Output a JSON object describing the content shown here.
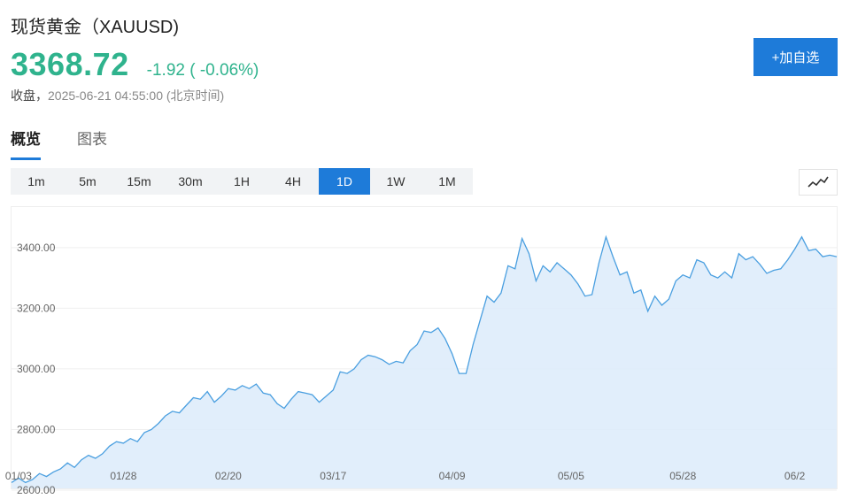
{
  "header": {
    "title": "现货黄金（XAUUSD)",
    "price": "3368.72",
    "change": "-1.92 ( -0.06%)",
    "close_label": "收盘，",
    "close_time": "2025-06-21 04:55:00 (北京时间)"
  },
  "add_button": "+加自选",
  "tabs": [
    {
      "label": "概览",
      "active": true
    },
    {
      "label": "图表",
      "active": false
    }
  ],
  "periods": [
    {
      "label": "1m",
      "active": false
    },
    {
      "label": "5m",
      "active": false
    },
    {
      "label": "15m",
      "active": false
    },
    {
      "label": "30m",
      "active": false
    },
    {
      "label": "1H",
      "active": false
    },
    {
      "label": "4H",
      "active": false
    },
    {
      "label": "1D",
      "active": true
    },
    {
      "label": "1W",
      "active": false
    },
    {
      "label": "1M",
      "active": false
    }
  ],
  "chart_toggle_icon": "line-chart-icon",
  "colors": {
    "accent": "#1e7bd9",
    "up_down": "#2fb38d",
    "line": "#4a9fe0",
    "fill": "#dcebfa"
  },
  "chart_data": {
    "type": "area",
    "title": "",
    "xlabel": "",
    "ylabel": "",
    "ylim": [
      2600,
      3490
    ],
    "yticks": [
      "2600.00",
      "2800.00",
      "3000.00",
      "3200.00",
      "3400.00"
    ],
    "xticks": [
      {
        "label": "01/03",
        "index": 1
      },
      {
        "label": "01/28",
        "index": 16
      },
      {
        "label": "02/20",
        "index": 31
      },
      {
        "label": "03/17",
        "index": 46
      },
      {
        "label": "04/09",
        "index": 63
      },
      {
        "label": "05/05",
        "index": 80
      },
      {
        "label": "05/28",
        "index": 96
      },
      {
        "label": "06/2",
        "index": 112
      }
    ],
    "series": [
      {
        "values": [
          2625,
          2640,
          2625,
          2635,
          2655,
          2645,
          2660,
          2670,
          2690,
          2675,
          2700,
          2715,
          2705,
          2720,
          2745,
          2760,
          2755,
          2770,
          2760,
          2790,
          2800,
          2820,
          2845,
          2860,
          2855,
          2880,
          2905,
          2900,
          2925,
          2890,
          2910,
          2935,
          2930,
          2945,
          2935,
          2950,
          2920,
          2915,
          2885,
          2870,
          2900,
          2925,
          2920,
          2915,
          2890,
          2910,
          2930,
          2990,
          2985,
          3000,
          3030,
          3045,
          3040,
          3030,
          3015,
          3025,
          3020,
          3060,
          3080,
          3125,
          3120,
          3135,
          3100,
          3050,
          2985,
          2985,
          3080,
          3160,
          3240,
          3220,
          3250,
          3340,
          3330,
          3430,
          3380,
          3290,
          3340,
          3320,
          3350,
          3330,
          3310,
          3280,
          3240,
          3245,
          3350,
          3435,
          3370,
          3310,
          3320,
          3250,
          3260,
          3190,
          3240,
          3210,
          3230,
          3290,
          3310,
          3300,
          3360,
          3350,
          3310,
          3300,
          3320,
          3300,
          3380,
          3360,
          3370,
          3345,
          3315,
          3325,
          3330,
          3360,
          3395,
          3435,
          3390,
          3395,
          3370,
          3375,
          3370
        ]
      }
    ]
  }
}
